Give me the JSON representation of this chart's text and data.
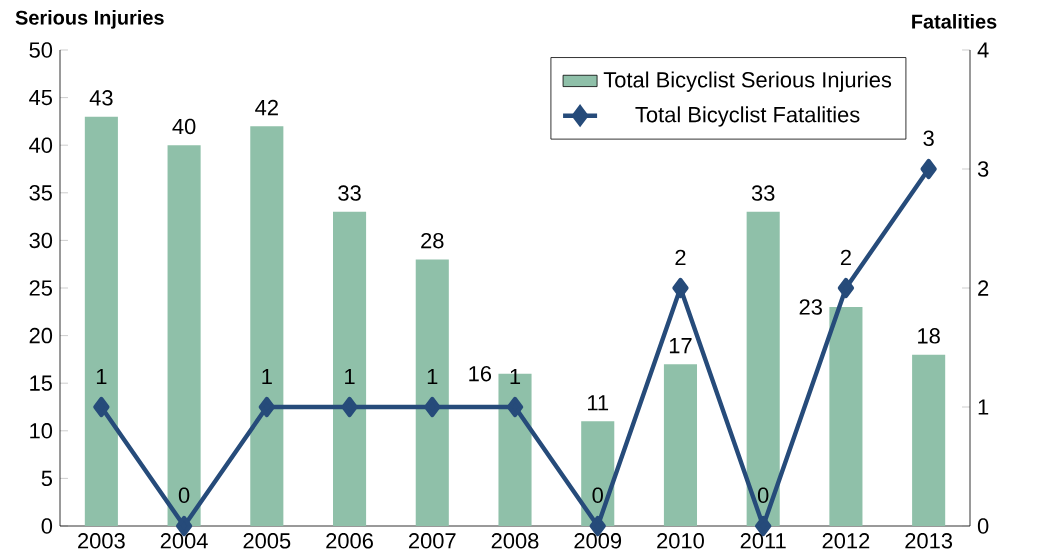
{
  "chart_data": {
    "type": "bar",
    "ylabel": "Serious Injuries",
    "y2label": "Fatalities",
    "categories": [
      "2003",
      "2004",
      "2005",
      "2006",
      "2007",
      "2008",
      "2009",
      "2010",
      "2011",
      "2012",
      "2013"
    ],
    "series": [
      {
        "name": "Total Bicyclist Serious Injuries",
        "color": "#8fc0a9",
        "values": [
          43,
          40,
          42,
          33,
          28,
          16,
          11,
          17,
          33,
          23,
          18
        ]
      },
      {
        "name": "Total Bicyclist Fatalities",
        "type": "line",
        "axis": "y2",
        "color": "#264b7a",
        "values": [
          1,
          0,
          1,
          1,
          1,
          1,
          0,
          2,
          0,
          2,
          3
        ]
      }
    ],
    "ylim": [
      0,
      50
    ],
    "yticks": [
      0,
      5,
      10,
      15,
      20,
      25,
      30,
      35,
      40,
      45,
      50
    ],
    "y2lim": [
      0,
      4
    ],
    "y2ticks": [
      0,
      1,
      2,
      3,
      4
    ],
    "data_labels": true,
    "legend": "top right",
    "marker": "diamond",
    "line_style": "solid"
  }
}
